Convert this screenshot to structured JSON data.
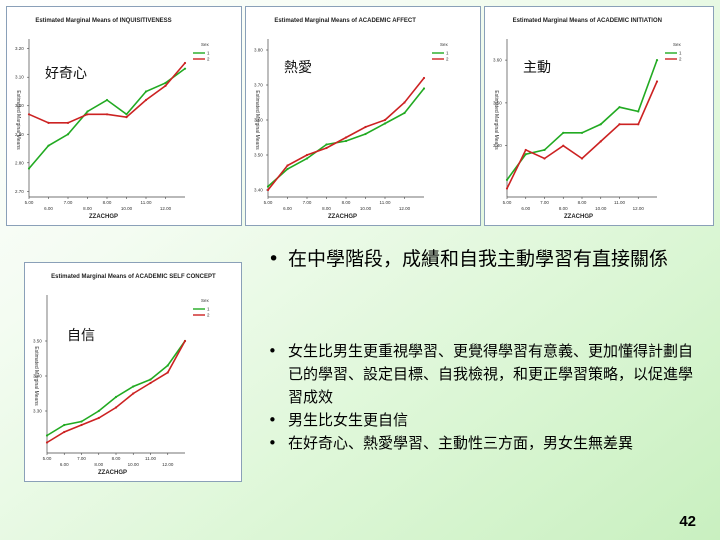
{
  "chart_data": [
    {
      "type": "line",
      "title": "Estimated Marginal Means of INQUISITIVENESS",
      "overlay_label": "好奇心",
      "xlabel": "ZZACHGP",
      "ylabel": "Estimated Marginal Means",
      "x_ticks_top": [
        "5.00",
        "7.00",
        "8.00",
        "11.00"
      ],
      "x_ticks_bottom": [
        "6.00",
        "8.00",
        "10.00",
        "12.00"
      ],
      "y_ticks": [
        "3.20",
        "3.10",
        "3.00",
        "2.90",
        "2.80",
        "2.70"
      ],
      "ylim": [
        2.68,
        3.22
      ],
      "legend_title": "Sex",
      "x": [
        1,
        2,
        3,
        4,
        5,
        6,
        7,
        8,
        9
      ],
      "series": [
        {
          "name": "1",
          "color": "#22aa22",
          "values": [
            2.78,
            2.86,
            2.9,
            2.98,
            3.02,
            2.97,
            3.05,
            3.08,
            3.13
          ]
        },
        {
          "name": "2",
          "color": "#cc2222",
          "values": [
            2.97,
            2.94,
            2.94,
            2.97,
            2.97,
            2.96,
            3.02,
            3.07,
            3.15
          ]
        }
      ]
    },
    {
      "type": "line",
      "title": "Estimated Marginal Means of ACADEMIC AFFECT",
      "overlay_label": "熱愛",
      "xlabel": "ZZACHGP",
      "ylabel": "Estimated Marginal Means",
      "x_ticks_top": [
        "5.00",
        "7.00",
        "8.00",
        "11.00"
      ],
      "x_ticks_bottom": [
        "6.00",
        "8.00",
        "10.00",
        "12.00"
      ],
      "y_ticks": [
        "3.80",
        "3.70",
        "3.60",
        "3.50",
        "3.40"
      ],
      "ylim": [
        3.38,
        3.82
      ],
      "legend_title": "Sex",
      "x": [
        1,
        2,
        3,
        4,
        5,
        6,
        7,
        8,
        9
      ],
      "series": [
        {
          "name": "1",
          "color": "#22aa22",
          "values": [
            3.41,
            3.46,
            3.49,
            3.53,
            3.54,
            3.56,
            3.59,
            3.62,
            3.69
          ]
        },
        {
          "name": "2",
          "color": "#cc2222",
          "values": [
            3.4,
            3.47,
            3.5,
            3.52,
            3.55,
            3.58,
            3.6,
            3.65,
            3.72
          ]
        }
      ]
    },
    {
      "type": "line",
      "title": "Estimated Marginal Means of ACADEMIC INITIATION",
      "overlay_label": "主動",
      "xlabel": "ZZACHGP",
      "ylabel": "Estimated Marginal Means",
      "x_ticks_top": [
        "5.00",
        "7.00",
        "8.00",
        "11.00"
      ],
      "x_ticks_bottom": [
        "6.00",
        "8.00",
        "10.00",
        "12.00"
      ],
      "y_ticks": [
        "3.60",
        "3.50",
        "3.40"
      ],
      "ylim": [
        3.28,
        3.64
      ],
      "legend_title": "Sex",
      "x": [
        1,
        2,
        3,
        4,
        5,
        6,
        7,
        8,
        9
      ],
      "series": [
        {
          "name": "1",
          "color": "#22aa22",
          "values": [
            3.32,
            3.38,
            3.39,
            3.43,
            3.43,
            3.45,
            3.49,
            3.48,
            3.6
          ]
        },
        {
          "name": "2",
          "color": "#cc2222",
          "values": [
            3.3,
            3.39,
            3.37,
            3.4,
            3.37,
            3.41,
            3.45,
            3.45,
            3.55
          ]
        }
      ]
    },
    {
      "type": "line",
      "title": "Estimated Marginal Means of ACADEMIC SELF CONCEPT",
      "overlay_label": "自信",
      "xlabel": "ZZACHGP",
      "ylabel": "Estimated Marginal Means",
      "x_ticks_top": [
        "5.00",
        "7.00",
        "8.00",
        "11.00"
      ],
      "x_ticks_bottom": [
        "6.00",
        "8.00",
        "10.00",
        "12.00"
      ],
      "y_ticks": [
        "3.50",
        "3.40",
        "3.30"
      ],
      "ylim": [
        3.18,
        3.62
      ],
      "legend_title": "Sex",
      "x": [
        1,
        2,
        3,
        4,
        5,
        6,
        7,
        8,
        9
      ],
      "series": [
        {
          "name": "1",
          "color": "#22aa22",
          "values": [
            3.23,
            3.26,
            3.27,
            3.3,
            3.34,
            3.37,
            3.39,
            3.43,
            3.5
          ]
        },
        {
          "name": "2",
          "color": "#cc2222",
          "values": [
            3.21,
            3.24,
            3.26,
            3.28,
            3.31,
            3.35,
            3.38,
            3.41,
            3.5
          ]
        }
      ]
    }
  ],
  "bullets": {
    "main": "在中學階段，成績和自我主動學習有直接關係",
    "items": [
      "女生比男生更重視學習、更覺得學習有意義、更加懂得計劃自已的學習、設定目標、自我檢視，和更正學習策略，以促進學習成效",
      "男生比女生更自信",
      "在好奇心、熱愛學習、主動性三方面，男女生無差異"
    ]
  },
  "page_number": "42"
}
